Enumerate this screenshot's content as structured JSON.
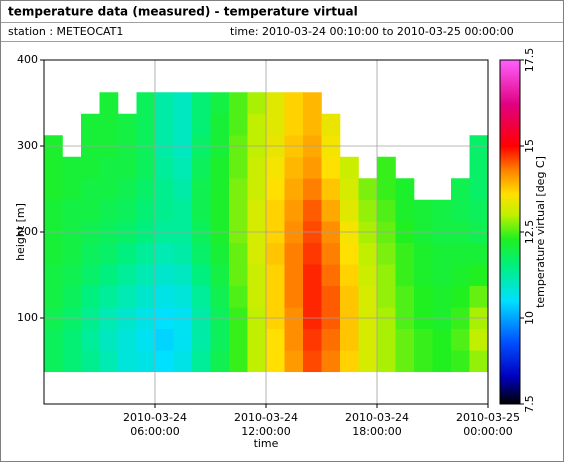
{
  "chart_data": {
    "type": "heatmap",
    "title": "temperature data (measured) - temperature virtual",
    "station": "station : METEOCAT1",
    "time_range": "time: 2010-03-24 00:10:00 to 2010-03-25 00:00:00",
    "xlabel": "time",
    "ylabel": "height [m]",
    "colorbar_label": "temperature virtual [deg C]",
    "xlim": [
      "2010-03-24 00:00:00",
      "2010-03-25 00:00:00"
    ],
    "xticks": [
      "2010-03-24 06:00:00",
      "2010-03-24 12:00:00",
      "2010-03-24 18:00:00",
      "2010-03-25 00:00:00"
    ],
    "ylim": [
      0,
      400
    ],
    "yticks": [
      100,
      200,
      300,
      400
    ],
    "clim": [
      7.5,
      17.5
    ],
    "cticks": [
      7.5,
      10,
      12.5,
      15,
      17.5
    ],
    "colorscale": [
      [
        7.5,
        "#000000"
      ],
      [
        8.3,
        "#0000c0"
      ],
      [
        9.3,
        "#0050ff"
      ],
      [
        10.5,
        "#00e0ff"
      ],
      [
        11.5,
        "#00f080"
      ],
      [
        12.3,
        "#20f020"
      ],
      [
        13,
        "#c0f000"
      ],
      [
        13.6,
        "#ffe000"
      ],
      [
        14.3,
        "#ff8000"
      ],
      [
        15,
        "#ff0000"
      ],
      [
        16.2,
        "#e00080"
      ],
      [
        17.5,
        "#ff60ff"
      ]
    ],
    "grid": true,
    "x": [
      "2010-03-24 00:30:00",
      "2010-03-24 01:30:00",
      "2010-03-24 02:30:00",
      "2010-03-24 03:30:00",
      "2010-03-24 04:30:00",
      "2010-03-24 05:30:00",
      "2010-03-24 06:30:00",
      "2010-03-24 07:30:00",
      "2010-03-24 08:30:00",
      "2010-03-24 09:30:00",
      "2010-03-24 10:30:00",
      "2010-03-24 11:30:00",
      "2010-03-24 12:30:00",
      "2010-03-24 13:30:00",
      "2010-03-24 14:30:00",
      "2010-03-24 15:30:00",
      "2010-03-24 16:30:00",
      "2010-03-24 17:30:00",
      "2010-03-24 18:30:00",
      "2010-03-24 19:30:00",
      "2010-03-24 20:30:00",
      "2010-03-24 21:30:00",
      "2010-03-24 22:30:00",
      "2010-03-24 23:30:00"
    ],
    "y": [
      50,
      75,
      100,
      125,
      150,
      175,
      200,
      225,
      250,
      275,
      300,
      325,
      350
    ],
    "z": [
      [
        11.8,
        11.8,
        11.9,
        12,
        12,
        12.1,
        12.1,
        12.1,
        12.2,
        12.2,
        12.2,
        null,
        null
      ],
      [
        11.6,
        11.6,
        11.7,
        11.8,
        11.9,
        12,
        12,
        12,
        12.1,
        12.1,
        null,
        null,
        null
      ],
      [
        11.4,
        11.3,
        11.4,
        11.5,
        11.7,
        11.8,
        11.9,
        12,
        12,
        12.1,
        12.1,
        12.1,
        null
      ],
      [
        11.1,
        11,
        11.1,
        11.3,
        11.5,
        11.7,
        11.8,
        11.9,
        12,
        12,
        12.1,
        12.1,
        12.1
      ],
      [
        10.8,
        10.8,
        10.9,
        11.1,
        11.3,
        11.5,
        11.7,
        11.8,
        11.9,
        12,
        12,
        12,
        null
      ],
      [
        10.7,
        10.6,
        10.7,
        10.9,
        11.1,
        11.3,
        11.5,
        11.6,
        11.7,
        11.8,
        11.8,
        11.8,
        11.8
      ],
      [
        10.5,
        10.4,
        10.5,
        10.7,
        10.9,
        11.1,
        11.3,
        11.4,
        11.4,
        11.3,
        11.2,
        11.2,
        11.2
      ],
      [
        10.7,
        10.6,
        10.6,
        10.8,
        11,
        11.2,
        11.3,
        11.3,
        11.2,
        11.1,
        11,
        11,
        11
      ],
      [
        11.3,
        11.2,
        11.2,
        11.3,
        11.5,
        11.7,
        11.8,
        11.9,
        11.9,
        11.8,
        11.7,
        11.6,
        11.6
      ],
      [
        11.9,
        11.8,
        11.8,
        11.9,
        12,
        12.1,
        12.2,
        12.2,
        12.2,
        12.2,
        12.1,
        12.1,
        12
      ],
      [
        12.4,
        12.4,
        12.4,
        12.5,
        12.6,
        12.6,
        12.7,
        12.7,
        12.7,
        12.6,
        12.6,
        12.5,
        12.5
      ],
      [
        13,
        13,
        13,
        13.1,
        13.1,
        13.2,
        13.2,
        13.2,
        13.1,
        13.1,
        13,
        13,
        12.9
      ],
      [
        13.6,
        13.6,
        13.7,
        13.7,
        13.7,
        13.8,
        13.7,
        13.7,
        13.6,
        13.5,
        13.4,
        13.3,
        13.3
      ],
      [
        14.1,
        14.2,
        14.2,
        14.3,
        14.3,
        14.3,
        14.2,
        14.1,
        14,
        13.9,
        13.8,
        13.7,
        13.7
      ],
      [
        14.6,
        14.7,
        14.8,
        14.8,
        14.8,
        14.7,
        14.6,
        14.5,
        14.3,
        14.1,
        14,
        13.9,
        13.9
      ],
      [
        14.3,
        14.4,
        14.5,
        14.5,
        14.4,
        14.3,
        14.2,
        14,
        13.8,
        13.6,
        13.5,
        13.4,
        null
      ],
      [
        13.7,
        13.8,
        13.8,
        13.8,
        13.7,
        13.6,
        13.5,
        13.3,
        13.2,
        13.1,
        null,
        null,
        null
      ],
      [
        13.2,
        13.2,
        13.2,
        13.2,
        13.1,
        13,
        12.9,
        12.8,
        12.7,
        null,
        null,
        null,
        null
      ],
      [
        12.9,
        12.9,
        12.9,
        12.8,
        12.8,
        12.7,
        12.6,
        12.5,
        12.4,
        12.4,
        null,
        null,
        null
      ],
      [
        12.6,
        12.6,
        12.5,
        12.5,
        12.4,
        12.4,
        12.3,
        12.2,
        12.2,
        null,
        null,
        null,
        null
      ],
      [
        12.4,
        12.4,
        12.3,
        12.3,
        12.2,
        12.2,
        12.1,
        12.1,
        null,
        null,
        null,
        null,
        null
      ],
      [
        12.3,
        12.3,
        12.2,
        12.2,
        12.1,
        12.1,
        12,
        12,
        null,
        null,
        null,
        null,
        null
      ],
      [
        12.4,
        12.5,
        12.4,
        12.3,
        12.2,
        12.1,
        12,
        11.9,
        11.9,
        null,
        null,
        null,
        null
      ],
      [
        12.8,
        13,
        12.9,
        12.6,
        12.3,
        12.1,
        11.9,
        11.8,
        11.7,
        11.7,
        11.7,
        null,
        null
      ]
    ]
  }
}
